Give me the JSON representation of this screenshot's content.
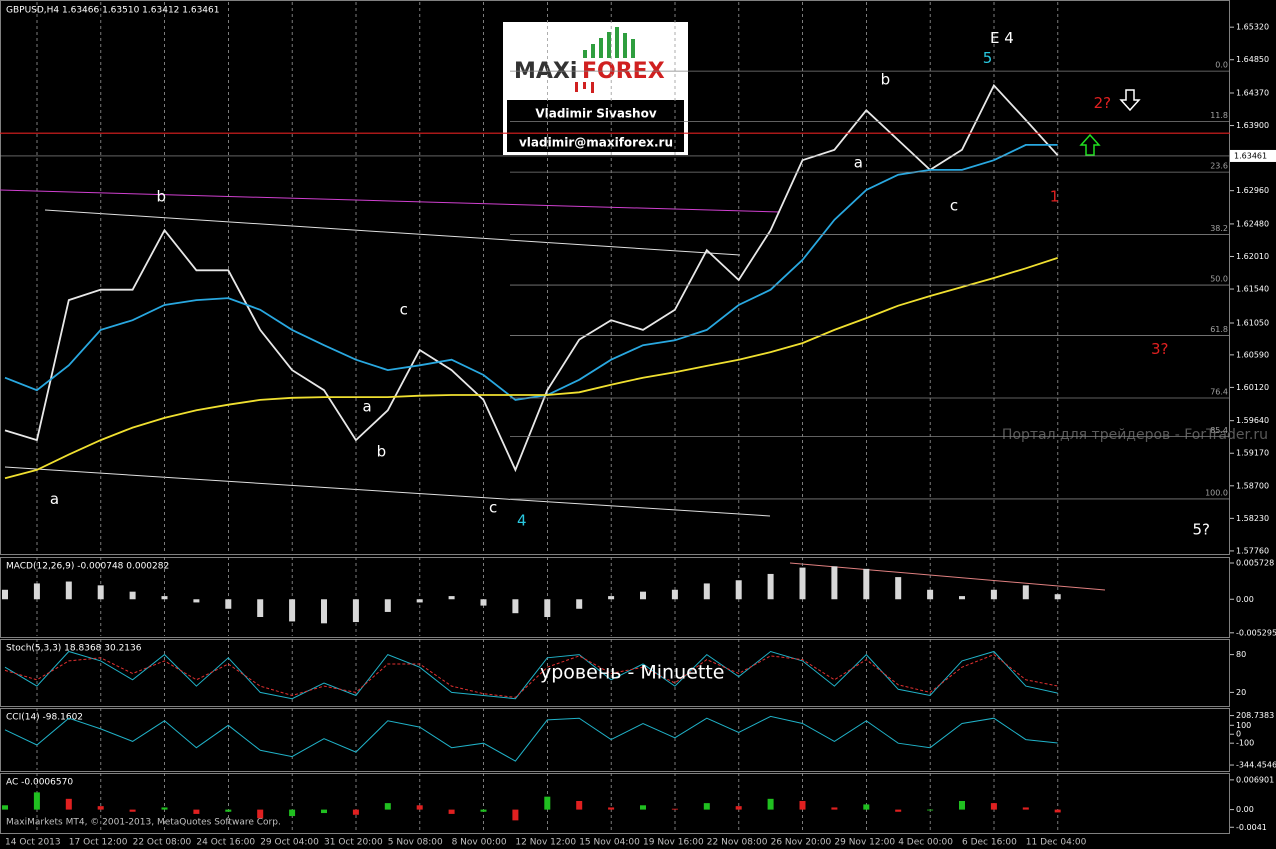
{
  "chart_data": [
    {
      "type": "line",
      "title": "GBPUSD,H4 1.63466 1.63510 1.63412 1.63461",
      "grid": true,
      "categories": [
        "14 Oct 2013",
        null,
        "17 Oct 12:00",
        null,
        "22 Oct 08:00",
        null,
        "24 Oct 16:00",
        null,
        "29 Oct 04:00",
        null,
        "31 Oct 20:00",
        null,
        "5 Nov 08:00",
        null,
        "8 Nov 00:00",
        null,
        "12 Nov 12:00",
        null,
        "15 Nov 04:00",
        null,
        "19 Nov 16:00",
        null,
        "22 Nov 08:00",
        null,
        "26 Nov 20:00",
        null,
        "29 Nov 12:00",
        null,
        "4 Dec 00:00",
        null,
        "6 Dec 16:00",
        null,
        "11 Dec 04:00",
        null
      ],
      "series": [
        {
          "color": "#e8e8e8",
          "values": [
            1.595,
            1.5936,
            1.6138,
            1.6153,
            1.6153,
            1.6239,
            1.6181,
            1.6181,
            1.6095,
            1.6037,
            1.6008,
            1.5936,
            1.5979,
            1.6066,
            1.6037,
            1.5994,
            1.5893,
            1.6008,
            1.6081,
            1.6109,
            1.6095,
            1.6124,
            1.621,
            1.6167,
            1.6239,
            1.634,
            1.6355,
            1.6412,
            1.6369,
            1.6326,
            1.6355,
            1.6448,
            1.6398,
            1.6347
          ]
        },
        {
          "color": "#29a8e0",
          "values": [
            1.6026,
            1.6008,
            1.6044,
            1.6095,
            1.6109,
            1.6131,
            1.6138,
            1.6141,
            1.6124,
            1.6095,
            1.6073,
            1.6052,
            1.6037,
            1.6044,
            1.6052,
            1.603,
            1.5994,
            1.6001,
            1.6023,
            1.6052,
            1.6073,
            1.608,
            1.6095,
            1.6131,
            1.6153,
            1.6196,
            1.6254,
            1.6297,
            1.6319,
            1.6326,
            1.6326,
            1.634,
            1.6362,
            1.6362
          ]
        },
        {
          "color": "#f0e030",
          "values": [
            1.5881,
            1.5893,
            1.5915,
            1.5936,
            1.5954,
            1.5968,
            1.5979,
            1.5987,
            1.5994,
            1.5997,
            1.5998,
            1.5998,
            1.5998,
            1.6,
            1.6001,
            1.6001,
            1.6001,
            1.6001,
            1.6005,
            1.6016,
            1.6026,
            1.6034,
            1.6043,
            1.6052,
            1.6063,
            1.6076,
            1.6095,
            1.6112,
            1.613,
            1.6144,
            1.6157,
            1.617,
            1.6184,
            1.6199
          ]
        }
      ],
      "ylim": [
        1.5773,
        1.6564
      ],
      "yticks": [
        {
          "value": 1.6532,
          "label": "1.65320"
        },
        {
          "value": 1.6485,
          "label": "1.64850"
        },
        {
          "value": 1.6437,
          "label": "1.64370"
        },
        {
          "value": 1.639,
          "label": "1.63900"
        },
        {
          "value": 1.6296,
          "label": "1.62960"
        },
        {
          "value": 1.6248,
          "label": "1.62480"
        },
        {
          "value": 1.6201,
          "label": "1.62010"
        },
        {
          "value": 1.6154,
          "label": "1.61540"
        },
        {
          "value": 1.6105,
          "label": "1.61050"
        },
        {
          "value": 1.6059,
          "label": "1.60590"
        },
        {
          "value": 1.6012,
          "label": "1.60120"
        },
        {
          "value": 1.5964,
          "label": "1.59640"
        },
        {
          "value": 1.5917,
          "label": "1.59170"
        },
        {
          "value": 1.587,
          "label": "1.58700"
        },
        {
          "value": 1.5823,
          "label": "1.58230"
        },
        {
          "value": 1.5776,
          "label": "1.57760"
        }
      ],
      "current_price": 1.63461,
      "resistance": 1.6379,
      "fib": {
        "high": 1.64685,
        "low": 1.5851,
        "levels": [
          {
            "value": 0,
            "label": "0.0"
          },
          {
            "value": 11.8,
            "label": "11.8"
          },
          {
            "value": 23.6,
            "label": "23.6"
          },
          {
            "value": 38.2,
            "label": "38.2"
          },
          {
            "value": 50,
            "label": "50.0"
          },
          {
            "value": 61.8,
            "label": "61.8"
          },
          {
            "value": 76.4,
            "label": "76.4"
          },
          {
            "value": 85.4,
            "label": "85.4"
          },
          {
            "value": 100,
            "label": "100.0"
          }
        ]
      },
      "annotations": [
        {
          "text": "E 4",
          "x": 31.25,
          "y": 1.6516,
          "color": "#ffffff"
        },
        {
          "text": "5?",
          "x": 37.5,
          "y": 1.5806,
          "color": "#ffffff"
        },
        {
          "text": "2?",
          "x": 34.4,
          "y": 1.6422,
          "color": "#e02020"
        },
        {
          "text": "3?",
          "x": 36.2,
          "y": 1.6067,
          "color": "#e02020"
        },
        {
          "text": "a",
          "x": 1.55,
          "y": 1.585,
          "color": "#ffffff"
        },
        {
          "text": "b",
          "x": 4.9,
          "y": 1.6287,
          "color": "#ffffff"
        },
        {
          "text": "c",
          "x": 15.3,
          "y": 1.5838,
          "color": "#ffffff"
        },
        {
          "text": "4",
          "x": 16.2,
          "y": 1.5819,
          "color": "#29c8e0"
        },
        {
          "text": "5",
          "x": 30.8,
          "y": 1.6487,
          "color": "#29c8e0"
        },
        {
          "text": "b",
          "x": 27.6,
          "y": 1.6456,
          "color": "#ffffff"
        },
        {
          "text": "a",
          "x": 26.75,
          "y": 1.6336,
          "color": "#ffffff"
        },
        {
          "text": "c",
          "x": 29.75,
          "y": 1.6274,
          "color": "#ffffff"
        },
        {
          "text": "1",
          "x": 32.9,
          "y": 1.6287,
          "color": "#e02020"
        },
        {
          "text": "c",
          "x": 12.5,
          "y": 1.6124,
          "color": "#ffffff"
        },
        {
          "text": "b",
          "x": 11.8,
          "y": 1.5919,
          "color": "#ffffff"
        },
        {
          "text": "a",
          "x": 11.35,
          "y": 1.5984,
          "color": "#ffffff"
        }
      ],
      "logo": [
        "MAXi",
        "FOREX"
      ],
      "author": "Vladimir Sivashov",
      "email": "vladimir@maxiforex.ru",
      "watermark": "Портал для трейдеров - ForTrader.ru",
      "footer": "MaxiMarkets MT4, © 2001-2013, MetaQuotes Software Corp."
    },
    {
      "type": "bar",
      "title": "MACD(12,26,9) -0.000748 0.000282",
      "color": "#d8d8d8",
      "values": [
        0.0015,
        0.0025,
        0.0028,
        0.0022,
        0.0012,
        0.0005,
        -0.0005,
        -0.0015,
        -0.0028,
        -0.0035,
        -0.0038,
        -0.0036,
        -0.002,
        -0.0005,
        0.0005,
        -0.001,
        -0.0022,
        -0.0028,
        -0.0015,
        0.0005,
        0.0012,
        0.0015,
        0.0025,
        0.003,
        0.004,
        0.005,
        0.0052,
        0.0048,
        0.0035,
        0.0015,
        0.0005,
        0.0015,
        0.0022,
        0.0008
      ],
      "ylim": [
        -0.0058,
        0.0062
      ],
      "yticks": [
        0.005728,
        {
          "value": 0,
          "label": "0.00"
        },
        -0.005295
      ]
    },
    {
      "type": "line",
      "title": "Stoch(5,3,3) 18.8368 30.2136",
      "series": [
        {
          "color": "#20b2c8",
          "values": [
            60,
            30,
            85,
            70,
            40,
            80,
            30,
            75,
            20,
            10,
            35,
            15,
            80,
            60,
            20,
            15,
            10,
            75,
            80,
            40,
            65,
            30,
            80,
            45,
            85,
            70,
            30,
            80,
            25,
            15,
            70,
            85,
            30,
            18.8368
          ]
        },
        {
          "color": "#e03030",
          "dashed": true,
          "values": [
            55,
            40,
            70,
            75,
            50,
            70,
            40,
            65,
            30,
            15,
            30,
            20,
            65,
            65,
            30,
            18,
            12,
            60,
            78,
            50,
            60,
            35,
            72,
            50,
            78,
            72,
            40,
            72,
            32,
            20,
            60,
            80,
            40,
            30.2136
          ]
        }
      ],
      "ylim": [
        0,
        100
      ],
      "yticks": [
        80,
        20
      ],
      "note": "уровень - Minuette"
    },
    {
      "type": "line",
      "title": "CCI(14) -98.1602",
      "series": [
        {
          "color": "#20b2c8",
          "values": [
            50,
            -120,
            180,
            60,
            -80,
            150,
            -150,
            100,
            -180,
            -250,
            -50,
            -200,
            150,
            80,
            -150,
            -100,
            -300,
            160,
            180,
            -60,
            120,
            -40,
            180,
            20,
            200,
            120,
            -80,
            150,
            -100,
            -150,
            120,
            180,
            -60,
            -98.1602
          ]
        }
      ],
      "ylim": [
        -400,
        260
      ],
      "yticks": [
        208.7383,
        100,
        0,
        -100,
        -344.4546
      ]
    },
    {
      "type": "bar",
      "title": "AC -0.0006570",
      "up_color": "#20c020",
      "down_color": "#e02020",
      "values": [
        0.001,
        0.004,
        0.0025,
        0.0008,
        -0.0005,
        0.0005,
        -0.001,
        -0.0005,
        -0.002,
        -0.0015,
        -0.0008,
        -0.0012,
        0.0015,
        0.001,
        -0.001,
        -0.0005,
        -0.0025,
        0.003,
        0.002,
        0.0005,
        0.001,
        0.0002,
        0.0015,
        0.0008,
        0.0025,
        0.002,
        0.0005,
        0.0012,
        -0.0005,
        -0.0002,
        0.002,
        0.0015,
        0.0005,
        -0.000657
      ],
      "ylim": [
        -0.0052,
        0.0078
      ],
      "yticks": [
        0.006901,
        {
          "value": 0,
          "label": "0.00"
        },
        -0.0041
      ]
    }
  ]
}
